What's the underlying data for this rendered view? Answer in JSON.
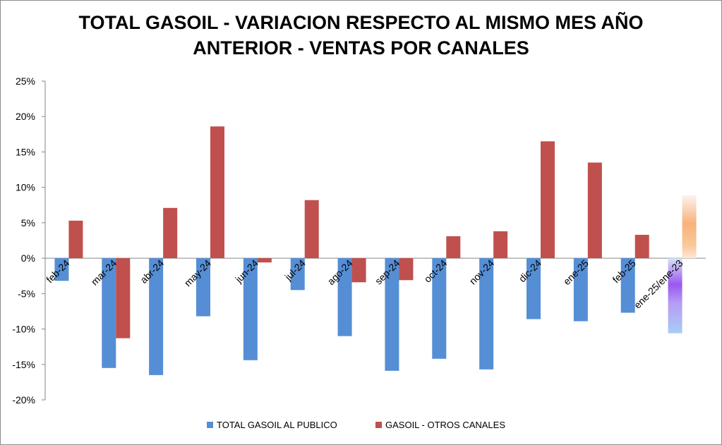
{
  "chart_data": {
    "type": "bar",
    "title_line1": "TOTAL GASOIL - VARIACION RESPECTO AL MISMO MES AÑO",
    "title_line2": "ANTERIOR - VENTAS POR CANALES",
    "categories": [
      "feb-24",
      "mar-24",
      "abr-24",
      "may-24",
      "jun-24",
      "jul-24",
      "ago-24",
      "sep-24",
      "oct-24",
      "nov-24",
      "dic-24",
      "ene-25",
      "feb-25",
      "ene-25/ene-23"
    ],
    "series": [
      {
        "name": "TOTAL GASOIL AL PUBLICO",
        "color": "#558ED5",
        "values": [
          -3.2,
          -15.5,
          -16.5,
          -8.2,
          -14.4,
          -4.5,
          -11.0,
          -15.9,
          -14.2,
          -15.7,
          -8.6,
          -8.9,
          -7.7,
          -10.6
        ]
      },
      {
        "name": "GASOIL - OTROS CANALES",
        "color": "#C0504D",
        "values": [
          5.3,
          -11.3,
          7.1,
          18.6,
          -0.6,
          8.2,
          -3.4,
          -3.1,
          3.1,
          3.8,
          16.5,
          13.5,
          3.3,
          8.9
        ]
      }
    ],
    "ylim": [
      -20,
      25
    ],
    "yticks": [
      -20,
      -15,
      -10,
      -5,
      0,
      5,
      10,
      15,
      20,
      25
    ],
    "ytick_labels": [
      "-20%",
      "-15%",
      "-10%",
      "-5%",
      "0%",
      "5%",
      "10%",
      "15%",
      "20%",
      "25%"
    ],
    "grid": false,
    "legend": "bottom",
    "xlabel": "",
    "ylabel": ""
  }
}
